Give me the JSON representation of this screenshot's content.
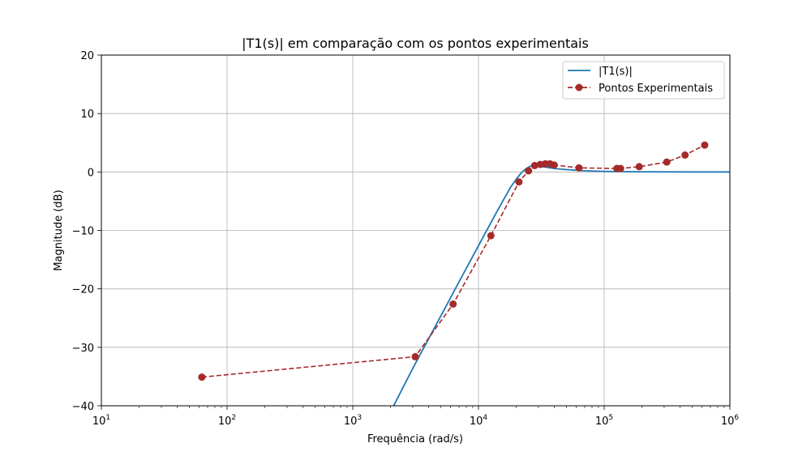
{
  "chart_data": {
    "type": "line",
    "title": "|T1(s)| em comparação com os pontos experimentais",
    "xlabel": "Frequência (rad/s)",
    "ylabel": "Magnitude (dB)",
    "xscale": "log",
    "xlim": [
      10,
      1000000
    ],
    "ylim": [
      -40,
      20
    ],
    "yticks": [
      20,
      10,
      0,
      -10,
      -20,
      -30,
      -40
    ],
    "yticklabels": [
      "20",
      "10",
      "0",
      "−10",
      "−20",
      "−30",
      "−40"
    ],
    "xticks": [
      {
        "base": "10",
        "exp": "1"
      },
      {
        "base": "10",
        "exp": "2"
      },
      {
        "base": "10",
        "exp": "3"
      },
      {
        "base": "10",
        "exp": "4"
      },
      {
        "base": "10",
        "exp": "5"
      },
      {
        "base": "10",
        "exp": "6"
      }
    ],
    "grid": true,
    "legend_position": "top-right",
    "series": [
      {
        "name": "|T1(s)|",
        "style": "solid",
        "color": "#1f77b4",
        "x": [
          2000,
          3000,
          5000,
          7000,
          10000,
          14000,
          18000,
          20000,
          22000,
          24000,
          26000,
          28000,
          30000,
          35000,
          40000,
          50000,
          70000,
          100000,
          200000,
          500000,
          1000000
        ],
        "y": [
          -41,
          -33.6,
          -24.7,
          -18.8,
          -12.6,
          -6.8,
          -2.6,
          -1.2,
          -0.1,
          0.6,
          1.0,
          1.1,
          1.0,
          0.8,
          0.6,
          0.4,
          0.2,
          0.1,
          0.03,
          0.0,
          0.0
        ]
      },
      {
        "name": "Pontos Experimentais",
        "style": "dashed-markers",
        "color": "#a52a2a",
        "x": [
          63,
          3140,
          6280,
          12560,
          21000,
          25000,
          28000,
          31000,
          34000,
          37000,
          40000,
          63000,
          126000,
          135000,
          190000,
          315000,
          440000,
          630000
        ],
        "y": [
          -35.1,
          -31.6,
          -22.6,
          -10.9,
          -1.7,
          0.2,
          1.1,
          1.3,
          1.4,
          1.4,
          1.2,
          0.7,
          0.6,
          0.6,
          0.9,
          1.7,
          2.9,
          4.6
        ]
      }
    ]
  }
}
